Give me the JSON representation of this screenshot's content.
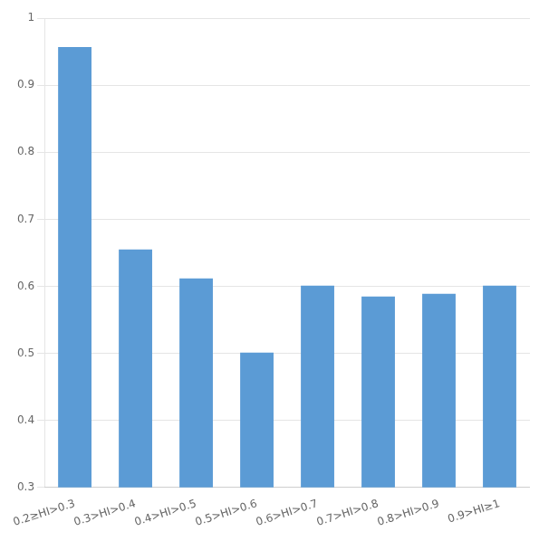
{
  "chart_data": {
    "type": "bar",
    "categories": [
      "0.2≥HI>0.3",
      "0.3>HI>0.4",
      "0.4>HI>0.5",
      "0.5>HI>0.6",
      "0.6>HI>0.7",
      "0.7>HI>0.8",
      "0.8>HI>0.9",
      "0.9>HI≥1"
    ],
    "values": [
      0.957,
      0.655,
      0.612,
      0.501,
      0.601,
      0.585,
      0.589,
      0.601
    ],
    "color": "#5B9BD5",
    "ylim": [
      0.3,
      1.0
    ],
    "yticks": [
      0.3,
      0.4,
      0.5,
      0.6,
      0.7,
      0.8,
      0.9,
      1
    ],
    "grid": true
  }
}
